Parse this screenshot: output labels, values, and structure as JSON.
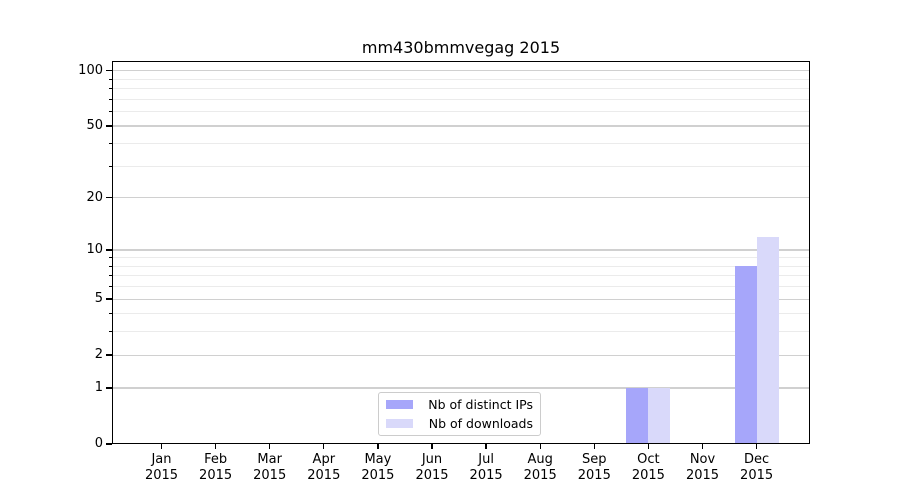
{
  "figure": {
    "background": "#ffffff",
    "spine_color": "#000000",
    "grid_major_color": "#d0d0d0",
    "grid_minor_color": "#ebebeb",
    "legend_border_color": "#cccccc"
  },
  "chart_data": {
    "type": "bar",
    "title": "mm430bmmvegag 2015",
    "categories": [
      "Jan",
      "Feb",
      "Mar",
      "Apr",
      "May",
      "Jun",
      "Jul",
      "Aug",
      "Sep",
      "Oct",
      "Nov",
      "Dec"
    ],
    "x_year": "2015",
    "series": [
      {
        "name": "Nb of distinct IPs",
        "color": "#a6a6fa",
        "values": [
          0,
          0,
          0,
          0,
          0,
          0,
          0,
          0,
          0,
          1,
          0,
          8
        ]
      },
      {
        "name": "Nb of downloads",
        "color": "#d9d9fa",
        "values": [
          0,
          0,
          0,
          0,
          0,
          0,
          0,
          0,
          0,
          1,
          0,
          12
        ]
      }
    ],
    "y_scale": "log1p",
    "ylim": [
      0,
      113
    ],
    "y_ticks_major": [
      0,
      1,
      2,
      5,
      10,
      20,
      50,
      100
    ],
    "y_ticks_minor": [
      3,
      4,
      6,
      7,
      8,
      9,
      30,
      40,
      60,
      70,
      80,
      90
    ],
    "grid": "horizontal",
    "legend_position": "lower center"
  }
}
